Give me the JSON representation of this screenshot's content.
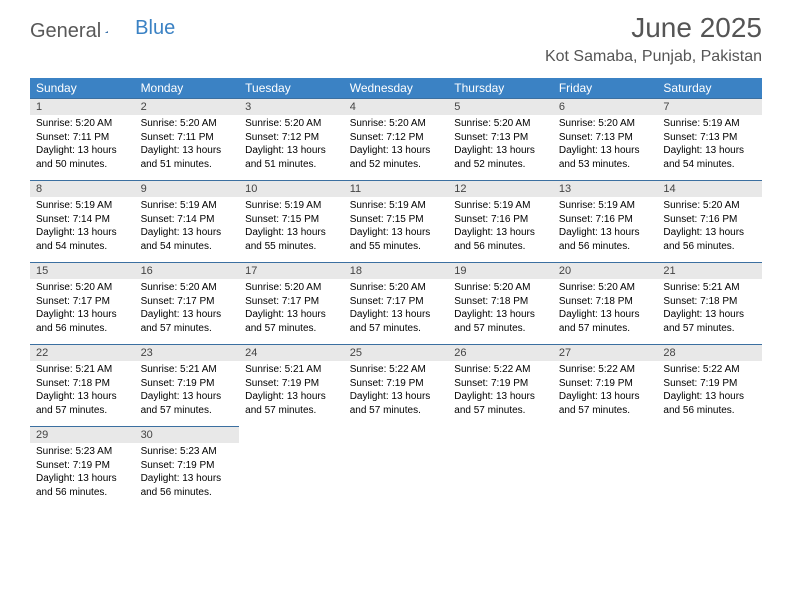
{
  "logo": {
    "general": "General",
    "blue": "Blue"
  },
  "title": "June 2025",
  "location": "Kot Samaba, Punjab, Pakistan",
  "colors": {
    "header_bg": "#3b82c4",
    "header_text": "#ffffff",
    "daynum_bg": "#e8e8e8",
    "border": "#3b6fa0",
    "title_color": "#555555",
    "logo_gray": "#585858",
    "logo_blue": "#3b82c4"
  },
  "fonts": {
    "title_size": 28,
    "location_size": 16,
    "header_size": 12,
    "daynum_size": 11,
    "body_size": 10
  },
  "day_labels": [
    "Sunday",
    "Monday",
    "Tuesday",
    "Wednesday",
    "Thursday",
    "Friday",
    "Saturday"
  ],
  "days": [
    {
      "n": "1",
      "sr": "5:20 AM",
      "ss": "7:11 PM",
      "dl": "13 hours and 50 minutes."
    },
    {
      "n": "2",
      "sr": "5:20 AM",
      "ss": "7:11 PM",
      "dl": "13 hours and 51 minutes."
    },
    {
      "n": "3",
      "sr": "5:20 AM",
      "ss": "7:12 PM",
      "dl": "13 hours and 51 minutes."
    },
    {
      "n": "4",
      "sr": "5:20 AM",
      "ss": "7:12 PM",
      "dl": "13 hours and 52 minutes."
    },
    {
      "n": "5",
      "sr": "5:20 AM",
      "ss": "7:13 PM",
      "dl": "13 hours and 52 minutes."
    },
    {
      "n": "6",
      "sr": "5:20 AM",
      "ss": "7:13 PM",
      "dl": "13 hours and 53 minutes."
    },
    {
      "n": "7",
      "sr": "5:19 AM",
      "ss": "7:13 PM",
      "dl": "13 hours and 54 minutes."
    },
    {
      "n": "8",
      "sr": "5:19 AM",
      "ss": "7:14 PM",
      "dl": "13 hours and 54 minutes."
    },
    {
      "n": "9",
      "sr": "5:19 AM",
      "ss": "7:14 PM",
      "dl": "13 hours and 54 minutes."
    },
    {
      "n": "10",
      "sr": "5:19 AM",
      "ss": "7:15 PM",
      "dl": "13 hours and 55 minutes."
    },
    {
      "n": "11",
      "sr": "5:19 AM",
      "ss": "7:15 PM",
      "dl": "13 hours and 55 minutes."
    },
    {
      "n": "12",
      "sr": "5:19 AM",
      "ss": "7:16 PM",
      "dl": "13 hours and 56 minutes."
    },
    {
      "n": "13",
      "sr": "5:19 AM",
      "ss": "7:16 PM",
      "dl": "13 hours and 56 minutes."
    },
    {
      "n": "14",
      "sr": "5:20 AM",
      "ss": "7:16 PM",
      "dl": "13 hours and 56 minutes."
    },
    {
      "n": "15",
      "sr": "5:20 AM",
      "ss": "7:17 PM",
      "dl": "13 hours and 56 minutes."
    },
    {
      "n": "16",
      "sr": "5:20 AM",
      "ss": "7:17 PM",
      "dl": "13 hours and 57 minutes."
    },
    {
      "n": "17",
      "sr": "5:20 AM",
      "ss": "7:17 PM",
      "dl": "13 hours and 57 minutes."
    },
    {
      "n": "18",
      "sr": "5:20 AM",
      "ss": "7:17 PM",
      "dl": "13 hours and 57 minutes."
    },
    {
      "n": "19",
      "sr": "5:20 AM",
      "ss": "7:18 PM",
      "dl": "13 hours and 57 minutes."
    },
    {
      "n": "20",
      "sr": "5:20 AM",
      "ss": "7:18 PM",
      "dl": "13 hours and 57 minutes."
    },
    {
      "n": "21",
      "sr": "5:21 AM",
      "ss": "7:18 PM",
      "dl": "13 hours and 57 minutes."
    },
    {
      "n": "22",
      "sr": "5:21 AM",
      "ss": "7:18 PM",
      "dl": "13 hours and 57 minutes."
    },
    {
      "n": "23",
      "sr": "5:21 AM",
      "ss": "7:19 PM",
      "dl": "13 hours and 57 minutes."
    },
    {
      "n": "24",
      "sr": "5:21 AM",
      "ss": "7:19 PM",
      "dl": "13 hours and 57 minutes."
    },
    {
      "n": "25",
      "sr": "5:22 AM",
      "ss": "7:19 PM",
      "dl": "13 hours and 57 minutes."
    },
    {
      "n": "26",
      "sr": "5:22 AM",
      "ss": "7:19 PM",
      "dl": "13 hours and 57 minutes."
    },
    {
      "n": "27",
      "sr": "5:22 AM",
      "ss": "7:19 PM",
      "dl": "13 hours and 57 minutes."
    },
    {
      "n": "28",
      "sr": "5:22 AM",
      "ss": "7:19 PM",
      "dl": "13 hours and 56 minutes."
    },
    {
      "n": "29",
      "sr": "5:23 AM",
      "ss": "7:19 PM",
      "dl": "13 hours and 56 minutes."
    },
    {
      "n": "30",
      "sr": "5:23 AM",
      "ss": "7:19 PM",
      "dl": "13 hours and 56 minutes."
    }
  ],
  "labels": {
    "sunrise": "Sunrise:",
    "sunset": "Sunset:",
    "daylight": "Daylight:"
  }
}
